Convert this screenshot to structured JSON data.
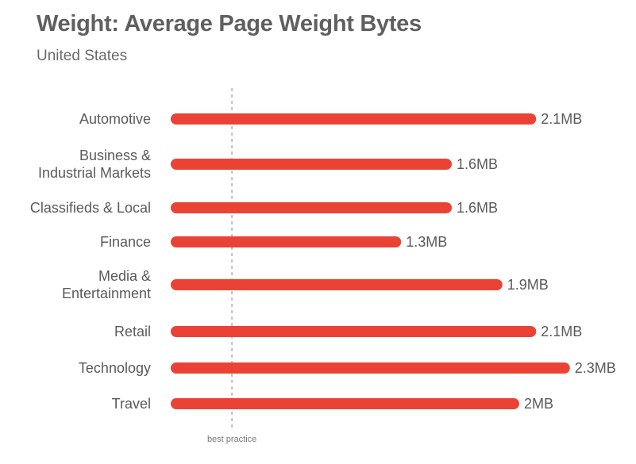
{
  "title": "Weight: Average Page Weight Bytes",
  "subtitle": "United States",
  "colors": {
    "bar": "#ea4335",
    "reference_line": "#bbbbbb",
    "title": "#5f5f5f",
    "text": "#5a5a5a"
  },
  "chart_data": {
    "type": "bar",
    "orientation": "horizontal",
    "title": "Weight: Average Page Weight Bytes",
    "subtitle": "United States",
    "categories": [
      [
        "Automotive"
      ],
      [
        "Business &",
        "Industrial Markets"
      ],
      [
        "Classifieds & Local"
      ],
      [
        "Finance"
      ],
      [
        "Media &",
        "Entertainment"
      ],
      [
        "Retail"
      ],
      [
        "Technology"
      ],
      [
        "Travel"
      ]
    ],
    "values": [
      2.1,
      1.6,
      1.6,
      1.3,
      1.9,
      2.1,
      2.3,
      2.0
    ],
    "value_labels": [
      "2.1MB",
      "1.6MB",
      "1.6MB",
      "1.3MB",
      "1.9MB",
      "2.1MB",
      "2.3MB",
      "2MB"
    ],
    "unit": "MB",
    "xlim": [
      0,
      2.3
    ],
    "grid": false,
    "legend": "none",
    "reference_line": {
      "label": "best practice",
      "value": 0.33
    }
  }
}
